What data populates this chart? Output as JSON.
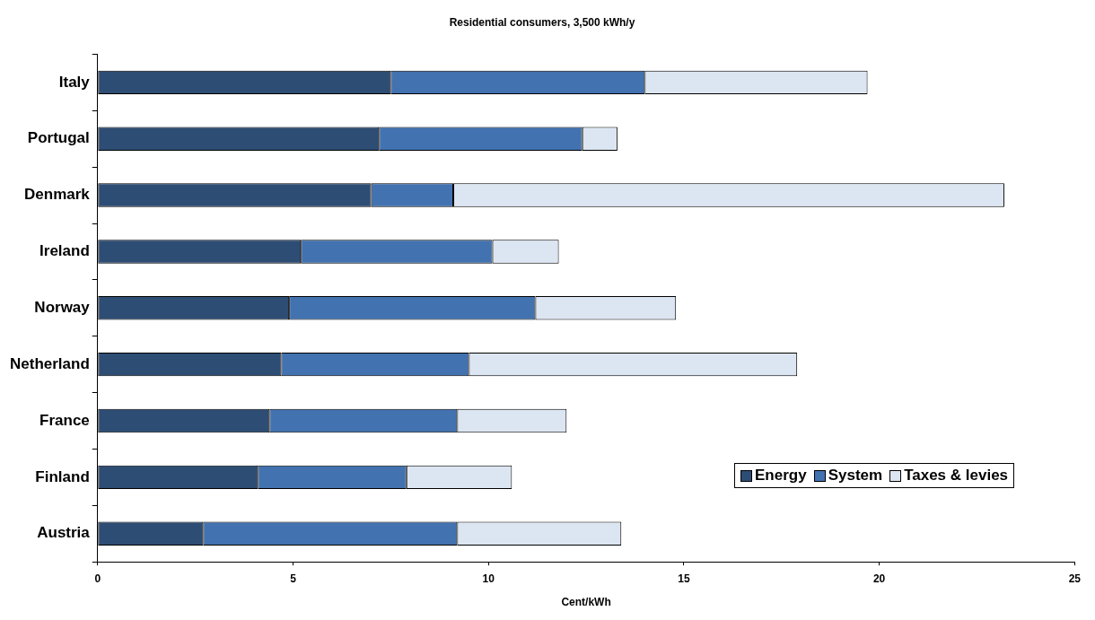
{
  "chart_data": {
    "type": "bar",
    "orientation": "horizontal",
    "stacked": true,
    "title": "Residential consumers, 3,500 kWh/y",
    "xlabel": "Cent/kWh",
    "categories": [
      "Italy",
      "Portugal",
      "Denmark",
      "Ireland",
      "Norway",
      "Netherland",
      "France",
      "Finland",
      "Austria"
    ],
    "series": [
      {
        "name": "Energy",
        "color": "#2e4d74",
        "values": [
          7.5,
          7.2,
          7.0,
          5.2,
          4.9,
          4.7,
          4.4,
          4.1,
          2.7
        ]
      },
      {
        "name": "System",
        "color": "#4272b0",
        "values": [
          6.5,
          5.2,
          2.1,
          4.9,
          6.3,
          4.8,
          4.8,
          3.8,
          6.5
        ]
      },
      {
        "name": "Taxes & levies",
        "color": "#dce6f2",
        "values": [
          5.7,
          0.9,
          14.1,
          1.7,
          3.6,
          8.4,
          2.8,
          2.7,
          4.2
        ]
      }
    ],
    "xlim": [
      0,
      25
    ],
    "xticks": [
      0,
      5,
      10,
      15,
      20,
      25
    ],
    "grid": false,
    "legend": "bottom right"
  }
}
